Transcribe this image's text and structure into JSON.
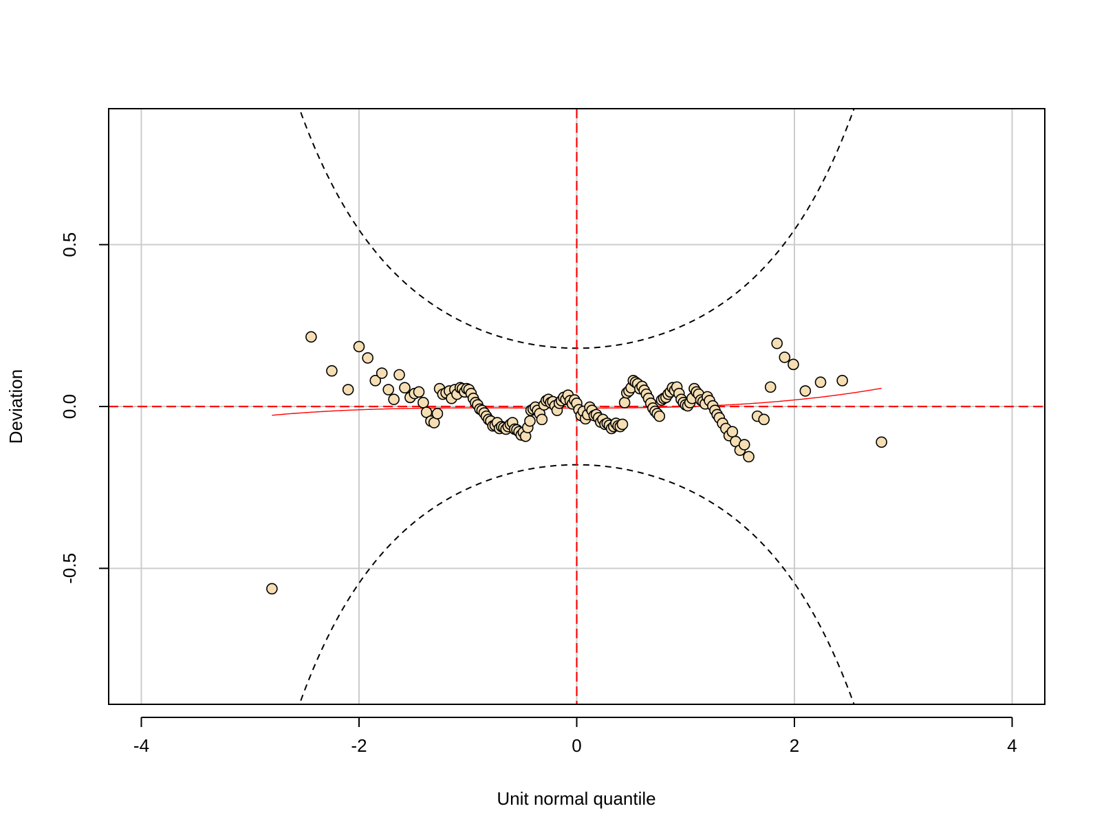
{
  "chart_data": {
    "type": "scatter",
    "title": "",
    "xlabel": "Unit normal quantile",
    "ylabel": "Deviation",
    "xlim": [
      -4.3,
      4.3
    ],
    "ylim": [
      -0.92,
      0.92
    ],
    "xticks": [
      "-4",
      "-2",
      "0",
      "2",
      "4"
    ],
    "xtick_values": [
      -4,
      -2,
      0,
      2,
      4
    ],
    "yticks": [
      "-0.5",
      "0.0",
      "0.5"
    ],
    "ytick_values": [
      -0.5,
      0.0,
      0.5
    ],
    "grid": true,
    "colors": {
      "point_fill": "#f5deb3",
      "point_stroke": "#000000",
      "reference_line": "#ff0000",
      "trend_line": "#ff0000",
      "confidence_band": "#000000",
      "grid": "#cccccc"
    },
    "reference_lines": {
      "x": 0,
      "y": 0
    },
    "points": [
      [
        -2.8,
        -0.563
      ],
      [
        -2.44,
        0.215
      ],
      [
        -2.25,
        0.11
      ],
      [
        -2.1,
        0.052
      ],
      [
        -2.0,
        0.185
      ],
      [
        -1.92,
        0.15
      ],
      [
        -1.85,
        0.08
      ],
      [
        -1.79,
        0.103
      ],
      [
        -1.73,
        0.052
      ],
      [
        -1.68,
        0.022
      ],
      [
        -1.63,
        0.098
      ],
      [
        -1.58,
        0.058
      ],
      [
        -1.53,
        0.028
      ],
      [
        -1.49,
        0.04
      ],
      [
        -1.45,
        0.045
      ],
      [
        -1.41,
        0.012
      ],
      [
        -1.38,
        -0.018
      ],
      [
        -1.34,
        -0.045
      ],
      [
        -1.31,
        -0.05
      ],
      [
        -1.28,
        -0.022
      ],
      [
        -1.26,
        0.055
      ],
      [
        -1.23,
        0.038
      ],
      [
        -1.2,
        0.042
      ],
      [
        -1.17,
        0.048
      ],
      [
        -1.15,
        0.025
      ],
      [
        -1.12,
        0.052
      ],
      [
        -1.1,
        0.038
      ],
      [
        -1.07,
        0.058
      ],
      [
        -1.05,
        0.055
      ],
      [
        -1.03,
        0.045
      ],
      [
        -1.01,
        0.055
      ],
      [
        -0.99,
        0.052
      ],
      [
        -0.97,
        0.04
      ],
      [
        -0.95,
        0.025
      ],
      [
        -0.93,
        0.012
      ],
      [
        -0.91,
        0.005
      ],
      [
        -0.89,
        -0.008
      ],
      [
        -0.87,
        -0.012
      ],
      [
        -0.85,
        -0.02
      ],
      [
        -0.83,
        -0.03
      ],
      [
        -0.81,
        -0.04
      ],
      [
        -0.79,
        -0.045
      ],
      [
        -0.77,
        -0.06
      ],
      [
        -0.75,
        -0.058
      ],
      [
        -0.73,
        -0.05
      ],
      [
        -0.71,
        -0.068
      ],
      [
        -0.69,
        -0.062
      ],
      [
        -0.67,
        -0.065
      ],
      [
        -0.65,
        -0.07
      ],
      [
        -0.63,
        -0.062
      ],
      [
        -0.61,
        -0.055
      ],
      [
        -0.59,
        -0.05
      ],
      [
        -0.57,
        -0.07
      ],
      [
        -0.55,
        -0.072
      ],
      [
        -0.53,
        -0.078
      ],
      [
        -0.51,
        -0.088
      ],
      [
        -0.49,
        -0.08
      ],
      [
        -0.47,
        -0.092
      ],
      [
        -0.45,
        -0.065
      ],
      [
        -0.43,
        -0.045
      ],
      [
        -0.42,
        -0.012
      ],
      [
        -0.4,
        -0.008
      ],
      [
        -0.38,
        -0.002
      ],
      [
        -0.36,
        -0.012
      ],
      [
        -0.34,
        -0.022
      ],
      [
        -0.32,
        -0.04
      ],
      [
        -0.3,
        0.005
      ],
      [
        -0.28,
        0.018
      ],
      [
        -0.26,
        0.022
      ],
      [
        -0.24,
        0.012
      ],
      [
        -0.22,
        0.015
      ],
      [
        -0.2,
        0.002
      ],
      [
        -0.18,
        -0.012
      ],
      [
        -0.16,
        0.01
      ],
      [
        -0.14,
        0.018
      ],
      [
        -0.12,
        0.028
      ],
      [
        -0.1,
        0.022
      ],
      [
        -0.08,
        0.035
      ],
      [
        -0.06,
        0.018
      ],
      [
        -0.04,
        0.008
      ],
      [
        -0.02,
        0.02
      ],
      [
        0.0,
        0.01
      ],
      [
        0.02,
        -0.01
      ],
      [
        0.04,
        -0.028
      ],
      [
        0.06,
        -0.015
      ],
      [
        0.08,
        -0.038
      ],
      [
        0.1,
        -0.025
      ],
      [
        0.12,
        -0.002
      ],
      [
        0.14,
        -0.012
      ],
      [
        0.16,
        -0.028
      ],
      [
        0.18,
        -0.025
      ],
      [
        0.2,
        -0.035
      ],
      [
        0.22,
        -0.048
      ],
      [
        0.24,
        -0.04
      ],
      [
        0.26,
        -0.055
      ],
      [
        0.28,
        -0.052
      ],
      [
        0.3,
        -0.058
      ],
      [
        0.32,
        -0.068
      ],
      [
        0.34,
        -0.062
      ],
      [
        0.36,
        -0.052
      ],
      [
        0.38,
        -0.06
      ],
      [
        0.4,
        -0.062
      ],
      [
        0.42,
        -0.055
      ],
      [
        0.44,
        0.012
      ],
      [
        0.46,
        0.042
      ],
      [
        0.48,
        0.048
      ],
      [
        0.5,
        0.058
      ],
      [
        0.52,
        0.08
      ],
      [
        0.54,
        0.075
      ],
      [
        0.56,
        0.07
      ],
      [
        0.58,
        0.055
      ],
      [
        0.6,
        0.062
      ],
      [
        0.62,
        0.05
      ],
      [
        0.64,
        0.038
      ],
      [
        0.66,
        0.025
      ],
      [
        0.68,
        0.01
      ],
      [
        0.7,
        -0.005
      ],
      [
        0.72,
        -0.015
      ],
      [
        0.74,
        -0.022
      ],
      [
        0.76,
        -0.03
      ],
      [
        0.78,
        0.02
      ],
      [
        0.8,
        0.025
      ],
      [
        0.82,
        0.028
      ],
      [
        0.84,
        0.038
      ],
      [
        0.86,
        0.045
      ],
      [
        0.88,
        0.058
      ],
      [
        0.9,
        0.05
      ],
      [
        0.92,
        0.06
      ],
      [
        0.94,
        0.04
      ],
      [
        0.96,
        0.022
      ],
      [
        0.98,
        0.012
      ],
      [
        1.0,
        0.005
      ],
      [
        1.02,
        0.002
      ],
      [
        1.04,
        0.012
      ],
      [
        1.06,
        0.025
      ],
      [
        1.08,
        0.055
      ],
      [
        1.1,
        0.045
      ],
      [
        1.12,
        0.038
      ],
      [
        1.14,
        0.02
      ],
      [
        1.16,
        0.015
      ],
      [
        1.18,
        0.008
      ],
      [
        1.2,
        0.03
      ],
      [
        1.22,
        0.018
      ],
      [
        1.25,
        0.002
      ],
      [
        1.27,
        -0.012
      ],
      [
        1.29,
        -0.025
      ],
      [
        1.31,
        -0.035
      ],
      [
        1.34,
        -0.052
      ],
      [
        1.37,
        -0.068
      ],
      [
        1.4,
        -0.09
      ],
      [
        1.43,
        -0.078
      ],
      [
        1.46,
        -0.108
      ],
      [
        1.5,
        -0.135
      ],
      [
        1.54,
        -0.118
      ],
      [
        1.58,
        -0.155
      ],
      [
        1.66,
        -0.03
      ],
      [
        1.72,
        -0.04
      ],
      [
        1.78,
        0.06
      ],
      [
        1.84,
        0.195
      ],
      [
        1.91,
        0.152
      ],
      [
        1.99,
        0.13
      ],
      [
        2.1,
        0.048
      ],
      [
        2.24,
        0.075
      ],
      [
        2.44,
        0.08
      ],
      [
        2.8,
        -0.11
      ]
    ]
  }
}
